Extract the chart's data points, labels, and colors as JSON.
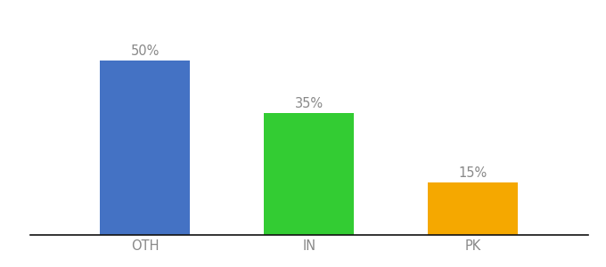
{
  "categories": [
    "OTH",
    "IN",
    "PK"
  ],
  "values": [
    50,
    35,
    15
  ],
  "bar_colors": [
    "#4472c4",
    "#33cc33",
    "#f5a800"
  ],
  "value_labels": [
    "50%",
    "35%",
    "15%"
  ],
  "background_color": "#ffffff",
  "bar_width": 0.55,
  "ylim": [
    0,
    62
  ],
  "label_fontsize": 10.5,
  "tick_fontsize": 10.5,
  "label_color": "#888888"
}
